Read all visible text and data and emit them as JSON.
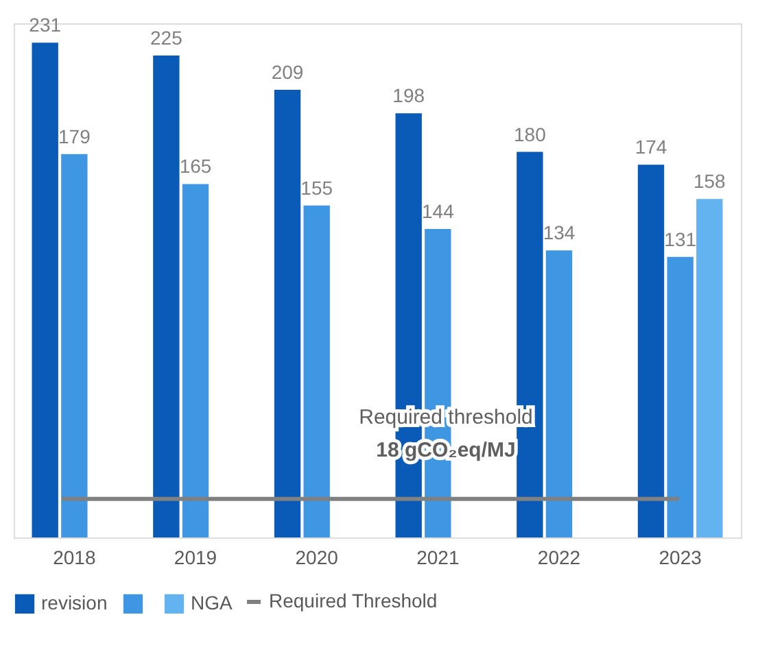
{
  "chart_data": {
    "type": "bar",
    "categories": [
      "2018",
      "2019",
      "2020",
      "2021",
      "2022",
      "2023"
    ],
    "series": [
      {
        "name": "revision",
        "color": "#0a5bb8",
        "values": [
          231,
          225,
          209,
          198,
          180,
          174
        ]
      },
      {
        "color": "#3f97e4",
        "values": [
          179,
          165,
          155,
          144,
          134,
          131
        ]
      },
      {
        "name": "NGA",
        "color": "#62b3f0",
        "values": [
          null,
          null,
          null,
          null,
          null,
          158
        ]
      }
    ],
    "ylim": [
      0,
      240
    ],
    "data_labels": true,
    "ref_lines": [
      {
        "axis": "y",
        "value": 18,
        "label": "Required Threshold",
        "color": "#808080"
      }
    ],
    "annotations": [
      "Required threshold",
      "18 gCO₂eq/MJ"
    ],
    "legend": "bottom",
    "grid": false
  }
}
